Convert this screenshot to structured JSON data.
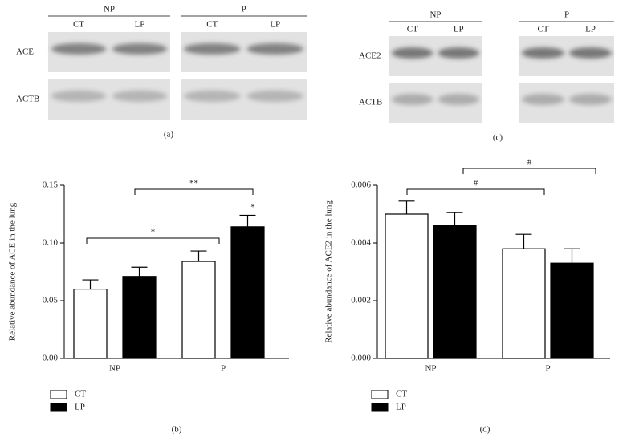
{
  "blots": [
    {
      "panel_label": "(a)",
      "groups": [
        "NP",
        "P"
      ],
      "lanes": [
        "CT",
        "LP"
      ],
      "rows": [
        "ACE",
        "ACTB"
      ]
    },
    {
      "panel_label": "(c)",
      "groups": [
        "NP",
        "P"
      ],
      "lanes": [
        "CT",
        "LP"
      ],
      "rows": [
        "ACE2",
        "ACTB"
      ]
    }
  ],
  "chart_data": [
    {
      "type": "bar",
      "panel_label": "(b)",
      "y_label": "Relative abundance of ACE in the lung",
      "categories": [
        "NP",
        "P"
      ],
      "series": [
        {
          "name": "CT",
          "color": "#ffffff",
          "values": [
            0.06,
            0.084
          ],
          "errors": [
            0.008,
            0.009
          ]
        },
        {
          "name": "LP",
          "color": "#000000",
          "values": [
            0.071,
            0.114
          ],
          "errors": [
            0.008,
            0.01
          ]
        }
      ],
      "ylim": [
        0,
        0.15
      ],
      "yticks": [
        {
          "value": 0,
          "label": "0.00"
        },
        {
          "value": 0.05,
          "label": "0.05"
        },
        {
          "value": 0.1,
          "label": "0.10"
        },
        {
          "value": 0.15,
          "label": "0.15"
        }
      ],
      "annotations": [
        "*",
        "**",
        "*"
      ]
    },
    {
      "type": "bar",
      "panel_label": "(d)",
      "y_label": "Relative abundance of ACE2 in the lung",
      "categories": [
        "NP",
        "P"
      ],
      "series": [
        {
          "name": "CT",
          "color": "#ffffff",
          "values": [
            0.005,
            0.0038
          ],
          "errors": [
            0.00045,
            0.0005
          ]
        },
        {
          "name": "LP",
          "color": "#000000",
          "values": [
            0.0046,
            0.0033
          ],
          "errors": [
            0.00045,
            0.0005
          ]
        }
      ],
      "ylim": [
        0,
        0.006
      ],
      "yticks": [
        {
          "value": 0,
          "label": "0.000"
        },
        {
          "value": 0.002,
          "label": "0.002"
        },
        {
          "value": 0.004,
          "label": "0.004"
        },
        {
          "value": 0.006,
          "label": "0.006"
        }
      ],
      "annotations": [
        "#",
        "#"
      ]
    }
  ]
}
